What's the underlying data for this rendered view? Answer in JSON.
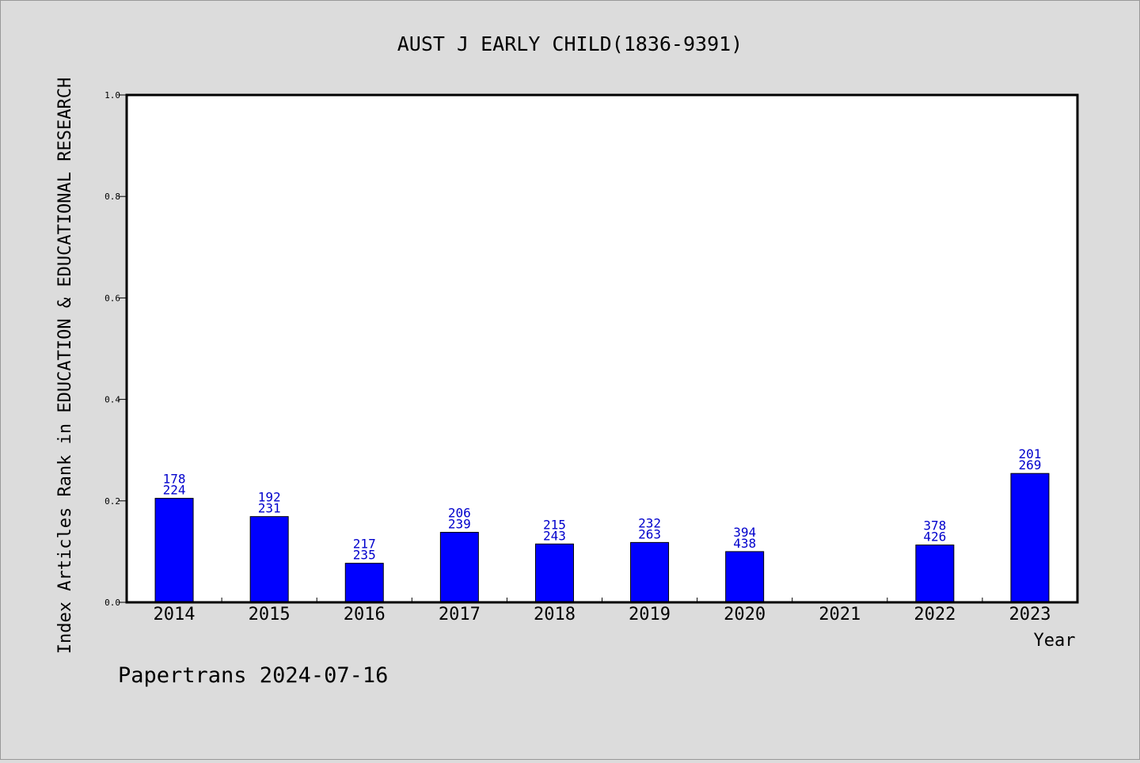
{
  "chart_data": {
    "type": "bar",
    "title": "AUST J EARLY CHILD(1836-9391)",
    "xlabel": "Year",
    "ylabel": "Index Articles Rank in EDUCATION & EDUCATIONAL RESEARCH",
    "ylim": [
      0,
      1.0
    ],
    "yticks": [
      "0.0",
      "0.2",
      "0.4",
      "0.6",
      "0.8",
      "1.0"
    ],
    "categories": [
      "2014",
      "2015",
      "2016",
      "2017",
      "2018",
      "2019",
      "2020",
      "2021",
      "2022",
      "2023"
    ],
    "values": [
      0.205,
      0.169,
      0.077,
      0.138,
      0.115,
      0.118,
      0.1,
      null,
      0.113,
      0.254
    ],
    "label_top": [
      "178",
      "192",
      "217",
      "206",
      "215",
      "232",
      "394",
      null,
      "378",
      "201"
    ],
    "label_bottom": [
      "224",
      "231",
      "235",
      "239",
      "243",
      "263",
      "438",
      null,
      "426",
      "269"
    ],
    "bar_color": "#0000ff",
    "label_color": "#0000cc",
    "grid": false,
    "legend": "none"
  },
  "footer": "Papertrans 2024-07-16"
}
